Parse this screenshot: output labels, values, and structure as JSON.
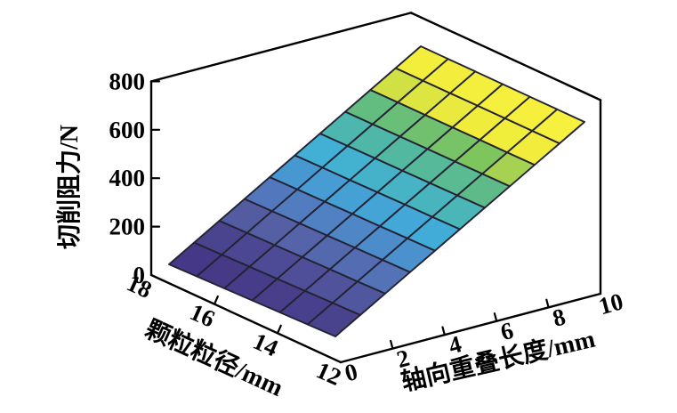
{
  "chart_data": {
    "type": "surface",
    "title": "",
    "x_axis": {
      "label": "轴向重叠长度/mm",
      "ticks": [
        0,
        2,
        4,
        6,
        8,
        10
      ],
      "range": [
        0,
        10
      ],
      "values": [
        0,
        1,
        2,
        3,
        4,
        5,
        6,
        7,
        8,
        9,
        10
      ]
    },
    "y_axis": {
      "label": "颗粒粒径/mm",
      "ticks": [
        18,
        16,
        14,
        12
      ],
      "range": [
        12,
        18
      ],
      "values": [
        12,
        13,
        14,
        15,
        16,
        17,
        18
      ]
    },
    "z_axis": {
      "label": "切削阻力/N",
      "ticks": [
        0,
        200,
        400,
        600,
        800
      ],
      "range": [
        0,
        800
      ]
    },
    "surface_z": {
      "description": "Cutting resistance (N); rows ordered by particle size 12→18 mm, columns by axial overlap length 0→10 mm",
      "rows": [
        [
          100,
          162,
          224,
          286,
          348,
          410,
          472,
          534,
          596,
          658,
          720
        ],
        [
          90,
          152,
          214,
          276,
          338,
          400,
          462,
          524,
          586,
          648,
          710
        ],
        [
          80,
          142,
          204,
          266,
          328,
          390,
          452,
          514,
          576,
          638,
          700
        ],
        [
          70,
          132,
          194,
          256,
          318,
          380,
          442,
          504,
          566,
          628,
          690
        ],
        [
          60,
          122,
          184,
          246,
          308,
          370,
          432,
          494,
          556,
          618,
          680
        ],
        [
          50,
          112,
          174,
          236,
          298,
          360,
          422,
          484,
          546,
          608,
          670
        ],
        [
          40,
          102,
          164,
          226,
          288,
          350,
          412,
          474,
          536,
          598,
          660
        ]
      ]
    },
    "color": {
      "value_range": [
        40,
        720
      ],
      "map_stops": [
        [
          0.0,
          "#433180"
        ],
        [
          0.15,
          "#4a4590"
        ],
        [
          0.25,
          "#5560a4"
        ],
        [
          0.33,
          "#5378bd"
        ],
        [
          0.42,
          "#4798d2"
        ],
        [
          0.5,
          "#41afd9"
        ],
        [
          0.57,
          "#48b5bd"
        ],
        [
          0.63,
          "#52b8a0"
        ],
        [
          0.7,
          "#66bd7b"
        ],
        [
          0.75,
          "#7fc55e"
        ],
        [
          0.78,
          "#cfe043"
        ],
        [
          0.82,
          "#f0ec3b"
        ],
        [
          1.0,
          "#f9f23f"
        ]
      ],
      "mesh_line": "#232334",
      "axis_line": "#000000",
      "text": "#000000",
      "background": "#ffffff"
    },
    "legend": null,
    "grid_panes": "none"
  }
}
